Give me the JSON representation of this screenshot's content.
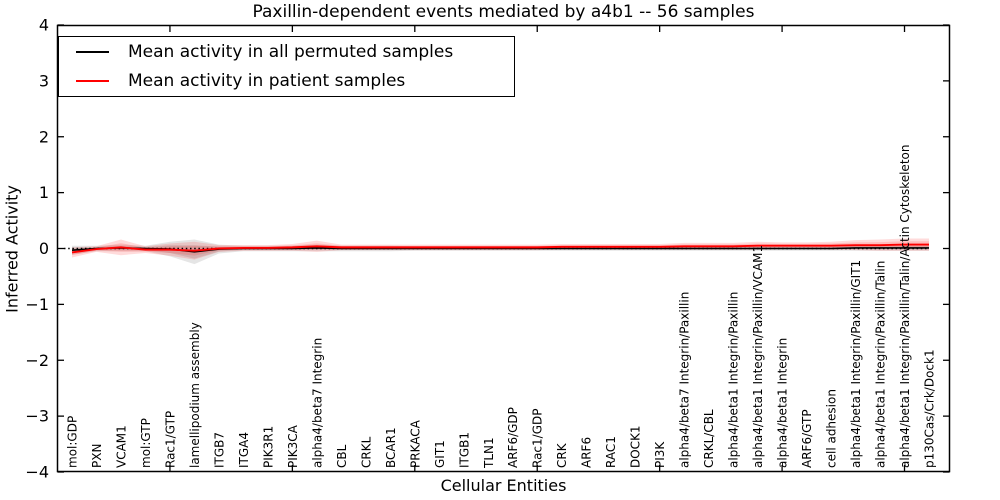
{
  "legend": {
    "items": [
      {
        "label": "Mean activity in all permuted samples",
        "color": "#000000"
      },
      {
        "label": "Mean activity in patient samples",
        "color": "#ff0000"
      }
    ]
  },
  "colors": {
    "axes": "#000000",
    "background": "#ffffff",
    "permuted_line": "#000000",
    "patient_line": "#ff0000",
    "permuted_band": "rgba(0,0,0,0.10)",
    "patient_band": "rgba(255,0,0,0.14)"
  },
  "chart_data": {
    "type": "line",
    "title": "Paxillin-dependent events mediated by a4b1 -- 56 samples",
    "xlabel": "Cellular Entities",
    "ylabel": "Inferred Activity",
    "ylim": [
      -4,
      4
    ],
    "ytick_values": [
      4,
      3,
      2,
      1,
      0,
      -1,
      -2,
      -3,
      -4
    ],
    "ytick_labels": [
      "4",
      "3",
      "2",
      "1",
      "0",
      "−1",
      "−2",
      "−3",
      "−4"
    ],
    "x_major_ticks": [
      5,
      10,
      15,
      20,
      25,
      30,
      35
    ],
    "grid": false,
    "legend_position": "upper left",
    "zero_line": {
      "style": "dotted",
      "color": "#000000",
      "y": 0
    },
    "categories": [
      "mol:GDP",
      "PXN",
      "VCAM1",
      "mol:GTP",
      "Rac1/GTP",
      "lamellipodium assembly",
      "ITGB7",
      "ITGA4",
      "PIK3R1",
      "PIK3CA",
      "alpha4/beta7 Integrin",
      "CBL",
      "CRKL",
      "BCAR1",
      "PRKACA",
      "GIT1",
      "ITGB1",
      "TLN1",
      "ARF6/GDP",
      "Rac1/GDP",
      "CRK",
      "ARF6",
      "RAC1",
      "DOCK1",
      "PI3K",
      "alpha4/beta7 Integrin/Paxillin",
      "CRKL/CBL",
      "alpha4/beta1 Integrin/Paxillin",
      "alpha4/beta1 Integrin/Paxillin/VCAM1",
      "alpha4/beta1 Integrin",
      "ARF6/GTP",
      "cell adhesion",
      "alpha4/beta1 Integrin/Paxillin/GIT1",
      "alpha4/beta1 Integrin/Paxillin/Talin",
      "alpha4/beta1 Integrin/Paxillin/Talin/Actin Cytoskeleton",
      "p130Cas/Crk/Dock1"
    ],
    "series": [
      {
        "name": "Mean activity in all permuted samples",
        "color": "#000000",
        "band_color": "rgba(0,0,0,0.10)",
        "values": [
          -0.03,
          0.0,
          0.01,
          0.0,
          -0.01,
          -0.06,
          -0.01,
          0.0,
          0.0,
          0.0,
          0.01,
          0.0,
          0.0,
          0.0,
          0.0,
          0.0,
          0.0,
          0.0,
          0.0,
          0.0,
          0.0,
          0.0,
          0.0,
          0.0,
          0.0,
          0.0,
          0.0,
          0.0,
          0.0,
          0.0,
          0.0,
          0.0,
          0.01,
          0.01,
          0.01,
          0.01
        ],
        "band": [
          0.08,
          0.05,
          0.06,
          0.05,
          0.13,
          0.22,
          0.08,
          0.05,
          0.05,
          0.05,
          0.06,
          0.05,
          0.05,
          0.05,
          0.04,
          0.04,
          0.04,
          0.04,
          0.04,
          0.04,
          0.04,
          0.04,
          0.04,
          0.04,
          0.04,
          0.04,
          0.04,
          0.04,
          0.04,
          0.04,
          0.04,
          0.04,
          0.05,
          0.05,
          0.05,
          0.05
        ]
      },
      {
        "name": "Mean activity in patient samples",
        "color": "#ff0000",
        "band_color": "rgba(255,0,0,0.14)",
        "values": [
          -0.07,
          -0.01,
          0.02,
          -0.02,
          -0.02,
          -0.04,
          0.0,
          0.01,
          0.01,
          0.02,
          0.04,
          0.02,
          0.02,
          0.02,
          0.02,
          0.02,
          0.02,
          0.02,
          0.02,
          0.02,
          0.03,
          0.03,
          0.03,
          0.03,
          0.03,
          0.04,
          0.04,
          0.04,
          0.05,
          0.05,
          0.05,
          0.05,
          0.06,
          0.06,
          0.07,
          0.07
        ],
        "band": [
          0.09,
          0.05,
          0.14,
          0.06,
          0.11,
          0.16,
          0.06,
          0.05,
          0.05,
          0.06,
          0.1,
          0.05,
          0.05,
          0.05,
          0.05,
          0.05,
          0.05,
          0.05,
          0.05,
          0.05,
          0.05,
          0.05,
          0.05,
          0.05,
          0.05,
          0.06,
          0.06,
          0.06,
          0.07,
          0.06,
          0.06,
          0.07,
          0.09,
          0.1,
          0.11,
          0.11
        ]
      }
    ]
  }
}
